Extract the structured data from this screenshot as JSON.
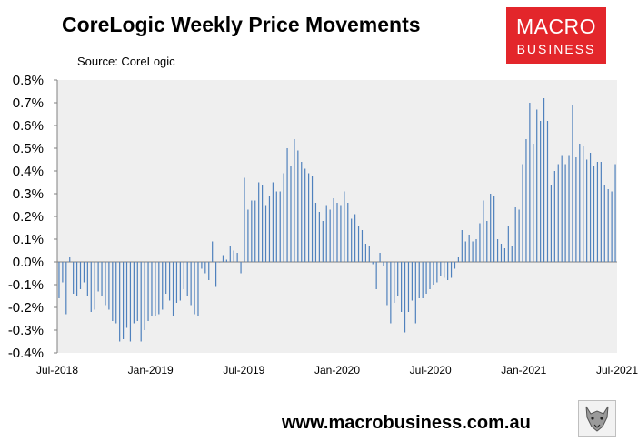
{
  "header": {
    "title": "CoreLogic Weekly Price Movements",
    "source": "Source: CoreLogic"
  },
  "logo": {
    "line1": "MACRO",
    "line2": "BUSINESS"
  },
  "footer": {
    "url": "www.macrobusiness.com.au"
  },
  "badge": {
    "icon": "wolf-logo-icon"
  },
  "colors": {
    "bars": "#4f81bd",
    "plot_background": "#efefef",
    "logo": "#e3262b"
  },
  "chart_data": {
    "type": "bar",
    "title": "CoreLogic Weekly Price Movements",
    "xlabel": "",
    "ylabel": "",
    "ylim": [
      -0.4,
      0.8
    ],
    "yticks": [
      "-0.4%",
      "-0.3%",
      "-0.2%",
      "-0.1%",
      "0.0%",
      "0.1%",
      "0.2%",
      "0.3%",
      "0.4%",
      "0.5%",
      "0.6%",
      "0.7%",
      "0.8%"
    ],
    "yticks_values": [
      -0.4,
      -0.3,
      -0.2,
      -0.1,
      0.0,
      0.1,
      0.2,
      0.3,
      0.4,
      0.5,
      0.6,
      0.7,
      0.8
    ],
    "xticks": [
      "Jul-2018",
      "Jan-2019",
      "Jul-2019",
      "Jan-2020",
      "Jul-2020",
      "Jan-2021",
      "Jul-2021"
    ],
    "x_start": "2018-07-01",
    "x_end": "2021-07-01",
    "grid": false,
    "legend": "none",
    "series": [
      {
        "values": [
          -0.16,
          -0.09,
          -0.23,
          0.02,
          -0.14,
          -0.15,
          -0.12,
          -0.09,
          -0.15,
          -0.22,
          -0.21,
          -0.13,
          -0.15,
          -0.19,
          -0.21,
          -0.26,
          -0.27,
          -0.35,
          -0.34,
          -0.29,
          -0.35,
          -0.27,
          -0.26,
          -0.35,
          -0.3,
          -0.26,
          -0.24,
          -0.24,
          -0.23,
          -0.21,
          -0.14,
          -0.17,
          -0.24,
          -0.18,
          -0.17,
          -0.12,
          -0.15,
          -0.19,
          -0.23,
          -0.24,
          -0.03,
          -0.05,
          -0.08,
          0.09,
          -0.11,
          0.0,
          0.03,
          0.01,
          0.07,
          0.05,
          0.04,
          -0.05,
          0.37,
          0.23,
          0.27,
          0.27,
          0.35,
          0.34,
          0.25,
          0.29,
          0.35,
          0.31,
          0.31,
          0.39,
          0.5,
          0.42,
          0.54,
          0.49,
          0.44,
          0.41,
          0.39,
          0.38,
          0.26,
          0.22,
          0.18,
          0.25,
          0.23,
          0.28,
          0.26,
          0.25,
          0.31,
          0.26,
          0.19,
          0.21,
          0.16,
          0.14,
          0.08,
          0.07,
          -0.01,
          -0.12,
          0.04,
          -0.02,
          -0.19,
          -0.27,
          -0.18,
          -0.15,
          -0.22,
          -0.31,
          -0.22,
          -0.17,
          -0.27,
          -0.16,
          -0.16,
          -0.14,
          -0.12,
          -0.1,
          -0.09,
          -0.06,
          -0.07,
          -0.08,
          -0.07,
          -0.03,
          0.02,
          0.14,
          0.09,
          0.12,
          0.09,
          0.1,
          0.17,
          0.27,
          0.18,
          0.3,
          0.29,
          0.1,
          0.08,
          0.06,
          0.16,
          0.07,
          0.24,
          0.23,
          0.43,
          0.54,
          0.7,
          0.52,
          0.67,
          0.62,
          0.72,
          0.62,
          0.34,
          0.4,
          0.43,
          0.47,
          0.43,
          0.47,
          0.69,
          0.46,
          0.52,
          0.51,
          0.45,
          0.48,
          0.42,
          0.44,
          0.44,
          0.34,
          0.32,
          0.31,
          0.43
        ]
      }
    ]
  }
}
